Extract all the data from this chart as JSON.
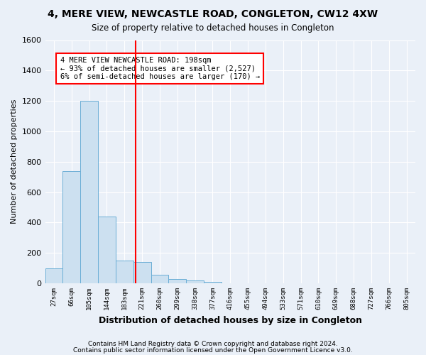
{
  "title1": "4, MERE VIEW, NEWCASTLE ROAD, CONGLETON, CW12 4XW",
  "title2": "Size of property relative to detached houses in Congleton",
  "xlabel": "Distribution of detached houses by size in Congleton",
  "ylabel": "Number of detached properties",
  "footer1": "Contains HM Land Registry data © Crown copyright and database right 2024.",
  "footer2": "Contains public sector information licensed under the Open Government Licence v3.0.",
  "bin_labels": [
    "27sqm",
    "66sqm",
    "105sqm",
    "144sqm",
    "183sqm",
    "221sqm",
    "260sqm",
    "299sqm",
    "338sqm",
    "377sqm",
    "416sqm",
    "455sqm",
    "494sqm",
    "533sqm",
    "571sqm",
    "610sqm",
    "649sqm",
    "688sqm",
    "727sqm",
    "766sqm",
    "805sqm"
  ],
  "bar_heights": [
    100,
    740,
    1200,
    440,
    150,
    140,
    55,
    30,
    20,
    10,
    0,
    0,
    0,
    0,
    0,
    0,
    0,
    0,
    0,
    0,
    0
  ],
  "bar_color": "#cce0f0",
  "bar_edge_color": "#6baed6",
  "red_line_x": 4.62,
  "annotation_text": "4 MERE VIEW NEWCASTLE ROAD: 198sqm\n← 93% of detached houses are smaller (2,527)\n6% of semi-detached houses are larger (170) →",
  "annotation_box_color": "white",
  "annotation_box_edge_color": "red",
  "ylim": [
    0,
    1600
  ],
  "yticks": [
    0,
    200,
    400,
    600,
    800,
    1000,
    1200,
    1400,
    1600
  ],
  "background_color": "#eaf0f8",
  "grid_color": "white"
}
